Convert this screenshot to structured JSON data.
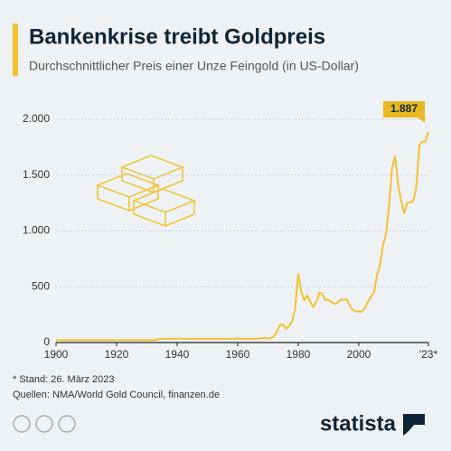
{
  "chart_data": {
    "type": "line",
    "title": "Bankenkrise treibt Goldpreis",
    "subtitle": "Durchschnittlicher Preis einer Unze Feingold (in US-Dollar)",
    "x": [
      1900,
      1933,
      1934,
      1967,
      1968,
      1969,
      1970,
      1971,
      1972,
      1973,
      1974,
      1975,
      1976,
      1977,
      1978,
      1979,
      1980,
      1981,
      1982,
      1983,
      1984,
      1985,
      1986,
      1987,
      1988,
      1989,
      1990,
      1991,
      1992,
      1993,
      1994,
      1995,
      1996,
      1997,
      1998,
      1999,
      2000,
      2001,
      2002,
      2003,
      2004,
      2005,
      2006,
      2007,
      2008,
      2009,
      2010,
      2011,
      2012,
      2013,
      2014,
      2015,
      2016,
      2017,
      2018,
      2019,
      2020,
      2021,
      2022,
      2023
    ],
    "values": [
      21,
      21,
      35,
      35,
      39,
      41,
      36,
      41,
      58,
      97,
      159,
      161,
      125,
      148,
      193,
      306,
      612,
      460,
      376,
      424,
      361,
      317,
      368,
      447,
      437,
      381,
      383,
      362,
      344,
      360,
      384,
      384,
      388,
      331,
      294,
      279,
      279,
      271,
      310,
      363,
      409,
      444,
      603,
      695,
      872,
      972,
      1225,
      1572,
      1669,
      1411,
      1266,
      1160,
      1251,
      1257,
      1268,
      1393,
      1770,
      1799,
      1800,
      1887
    ],
    "value_labels": [
      null,
      null,
      null,
      null,
      null,
      null,
      null,
      null,
      null,
      null,
      null,
      null,
      null,
      null,
      null,
      null,
      null,
      null,
      null,
      null,
      null,
      null,
      null,
      null,
      null,
      null,
      null,
      null,
      null,
      null,
      null,
      null,
      null,
      null,
      null,
      null,
      null,
      null,
      null,
      null,
      null,
      null,
      null,
      null,
      null,
      null,
      null,
      null,
      null,
      null,
      null,
      null,
      null,
      null,
      null,
      null,
      null,
      null,
      null,
      "1.887"
    ],
    "color": "#f2c230",
    "xlim": [
      1900,
      2023
    ],
    "xticks": [
      1900,
      1920,
      1940,
      1960,
      1980,
      2000,
      {
        "value": 2023,
        "label": "'23*"
      }
    ],
    "ylim": [
      0,
      2000
    ],
    "yticks": [
      0,
      {
        "value": 500,
        "label": "500"
      },
      {
        "value": 1000,
        "label": "1.000"
      },
      {
        "value": 1500,
        "label": "1.500"
      },
      {
        "value": 2000,
        "label": "2.000"
      }
    ],
    "grid": true,
    "notes": [
      "* Stand: 26. März 2023",
      "Quellen: NMA/World Gold Council, finanzen.de"
    ],
    "brand": "statista"
  }
}
